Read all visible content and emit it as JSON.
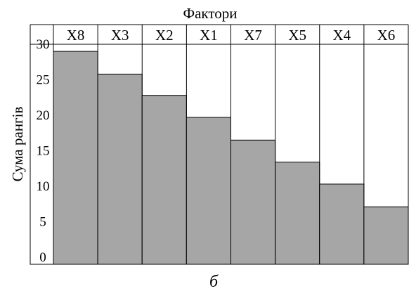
{
  "chart_data": {
    "type": "bar",
    "title": "Фактори",
    "ylabel": "Сума рангів",
    "xlabel": "",
    "caption": "б",
    "categories": [
      "X8",
      "X3",
      "X2",
      "X1",
      "X7",
      "X5",
      "X4",
      "X6"
    ],
    "values": [
      30,
      26.8,
      23.8,
      20.7,
      17.5,
      14.4,
      11.3,
      8.1
    ],
    "yticks": [
      0,
      5,
      10,
      15,
      20,
      25,
      30
    ],
    "ylim": [
      0,
      31
    ],
    "bar_color": "#a6a6a6",
    "grid": false,
    "legend": "none"
  }
}
